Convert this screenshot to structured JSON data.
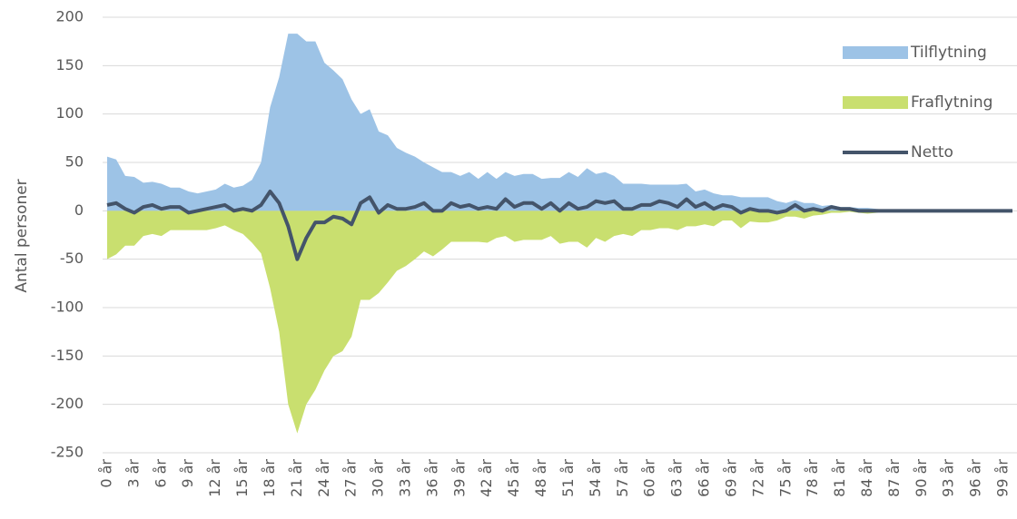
{
  "chart_data": {
    "type": "area",
    "y_label": "Antal personer",
    "legend": "right",
    "grid": true,
    "ylim": [
      -250,
      200
    ],
    "yticks": [
      200,
      150,
      100,
      50,
      0,
      -50,
      -100,
      -150,
      -200,
      -250
    ],
    "categories": [
      "0 år",
      null,
      null,
      "3 år",
      null,
      null,
      "6 år",
      null,
      null,
      "9 år",
      null,
      null,
      "12 år",
      null,
      null,
      "15 år",
      null,
      null,
      "18 år",
      null,
      null,
      "21 år",
      null,
      null,
      "24 år",
      null,
      null,
      "27 år",
      null,
      null,
      "30 år",
      null,
      null,
      "33 år",
      null,
      null,
      "36 år",
      null,
      null,
      "39 år",
      null,
      null,
      "42 år",
      null,
      null,
      "45 år",
      null,
      null,
      "48 år",
      null,
      null,
      "51 år",
      null,
      null,
      "54 år",
      null,
      null,
      "57 år",
      null,
      null,
      "60 år",
      null,
      null,
      "63 år",
      null,
      null,
      "66 år",
      null,
      null,
      "69 år",
      null,
      null,
      "72 år",
      null,
      null,
      "75 år",
      null,
      null,
      "78 år",
      null,
      null,
      "81 år",
      null,
      null,
      "84 år",
      null,
      null,
      "87 år",
      null,
      null,
      "90 år",
      null,
      null,
      "93 år",
      null,
      null,
      "96 år",
      null,
      null,
      "99 år",
      null
    ],
    "series": [
      {
        "name": "Tilflytning",
        "type": "area",
        "color": "#9dc3e6",
        "values": [
          56,
          53,
          36,
          35,
          29,
          30,
          28,
          24,
          24,
          20,
          18,
          20,
          22,
          28,
          24,
          26,
          32,
          50,
          107,
          138,
          183,
          183,
          175,
          175,
          153,
          145,
          136,
          115,
          100,
          105,
          82,
          78,
          65,
          60,
          56,
          50,
          45,
          40,
          40,
          36,
          40,
          33,
          40,
          33,
          40,
          36,
          38,
          38,
          33,
          34,
          34,
          40,
          35,
          44,
          38,
          40,
          36,
          28,
          28,
          28,
          27,
          27,
          27,
          27,
          28,
          20,
          22,
          18,
          16,
          16,
          14,
          14,
          14,
          14,
          10,
          8,
          11,
          8,
          8,
          5,
          6,
          4,
          4,
          3,
          3,
          2,
          1,
          1,
          0,
          0,
          0,
          0,
          0,
          0,
          0,
          0,
          0,
          0,
          0,
          0,
          0
        ]
      },
      {
        "name": "Fraflytning",
        "type": "area",
        "color": "#c9df6f",
        "values": [
          -50,
          -45,
          -36,
          -36,
          -26,
          -24,
          -26,
          -20,
          -20,
          -20,
          -20,
          -20,
          -18,
          -15,
          -20,
          -24,
          -33,
          -44,
          -80,
          -125,
          -200,
          -230,
          -200,
          -185,
          -165,
          -150,
          -145,
          -130,
          -92,
          -92,
          -85,
          -74,
          -62,
          -57,
          -50,
          -42,
          -47,
          -40,
          -32,
          -32,
          -32,
          -32,
          -33,
          -28,
          -26,
          -32,
          -30,
          -30,
          -30,
          -26,
          -34,
          -32,
          -32,
          -38,
          -28,
          -32,
          -26,
          -24,
          -26,
          -20,
          -20,
          -18,
          -18,
          -20,
          -16,
          -16,
          -14,
          -16,
          -10,
          -10,
          -18,
          -11,
          -12,
          -12,
          -10,
          -6,
          -6,
          -8,
          -5,
          -4,
          -2,
          -2,
          -1,
          -2,
          -3,
          -2,
          0,
          0,
          0,
          0,
          0,
          0,
          0,
          0,
          0,
          0,
          0,
          0,
          0,
          0,
          0
        ]
      },
      {
        "name": "Netto",
        "type": "line",
        "color": "#44546a",
        "values": [
          6,
          8,
          2,
          -2,
          4,
          6,
          2,
          4,
          4,
          -2,
          0,
          2,
          4,
          6,
          0,
          2,
          0,
          6,
          20,
          8,
          -16,
          -50,
          -28,
          -12,
          -12,
          -6,
          -8,
          -14,
          8,
          14,
          -2,
          6,
          2,
          2,
          4,
          8,
          0,
          0,
          8,
          4,
          6,
          2,
          4,
          2,
          12,
          4,
          8,
          8,
          2,
          8,
          0,
          8,
          2,
          4,
          10,
          8,
          10,
          2,
          2,
          6,
          6,
          10,
          8,
          4,
          12,
          4,
          8,
          2,
          6,
          4,
          -2,
          2,
          0,
          0,
          -2,
          0,
          6,
          0,
          2,
          0,
          4,
          2,
          2,
          0,
          0,
          0,
          0,
          0,
          0,
          0,
          0,
          0,
          0,
          0,
          0,
          0,
          0,
          0,
          0,
          0,
          0
        ]
      }
    ]
  }
}
